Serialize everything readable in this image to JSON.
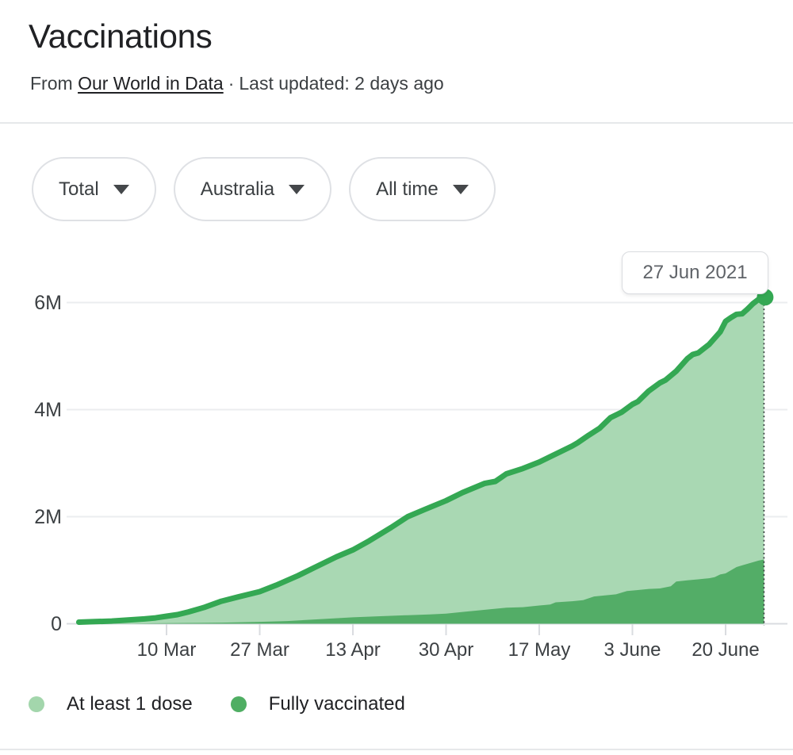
{
  "header": {
    "title": "Vaccinations",
    "source_prefix": "From",
    "source_link": "Our World in Data",
    "separator": "·",
    "updated": "Last updated: 2 days ago"
  },
  "filters": [
    {
      "label": "Total"
    },
    {
      "label": "Australia"
    },
    {
      "label": "All time"
    }
  ],
  "legend": {
    "items": [
      {
        "label": "At least 1 dose",
        "color": "#a3d6ac"
      },
      {
        "label": "Fully vaccinated",
        "color": "#4fae63"
      }
    ]
  },
  "chart_data": {
    "type": "area",
    "title": "Vaccinations",
    "xlabel": "",
    "ylabel": "",
    "ylim": [
      0,
      6.5
    ],
    "grid": "horizontal",
    "legend_position": "bottom",
    "y_ticks": [
      {
        "label": "0",
        "value": 0
      },
      {
        "label": "2M",
        "value": 2
      },
      {
        "label": "4M",
        "value": 4
      },
      {
        "label": "6M",
        "value": 6
      }
    ],
    "x_ticks": [
      {
        "label": "10 Mar",
        "day": 16
      },
      {
        "label": "27 Mar",
        "day": 33
      },
      {
        "label": "13 Apr",
        "day": 50
      },
      {
        "label": "30 Apr",
        "day": 67
      },
      {
        "label": "17 May",
        "day": 84
      },
      {
        "label": "3 June",
        "day": 101
      },
      {
        "label": "20 June",
        "day": 118
      }
    ],
    "end_marker": {
      "label": "27 Jun 2021",
      "day": 125,
      "value": 6.1
    },
    "value_unit": "millions of people",
    "series": [
      {
        "name": "At least 1 dose",
        "color_line": "#34a853",
        "color_fill": "#a9d8b3",
        "points": [
          [
            0,
            0.03
          ],
          [
            3,
            0.04
          ],
          [
            6,
            0.05
          ],
          [
            9,
            0.07
          ],
          [
            12,
            0.09
          ],
          [
            14,
            0.11
          ],
          [
            16,
            0.14
          ],
          [
            18,
            0.17
          ],
          [
            20,
            0.22
          ],
          [
            23,
            0.31
          ],
          [
            26,
            0.42
          ],
          [
            29,
            0.5
          ],
          [
            33,
            0.6
          ],
          [
            36,
            0.72
          ],
          [
            40,
            0.9
          ],
          [
            43,
            1.05
          ],
          [
            47,
            1.25
          ],
          [
            50,
            1.38
          ],
          [
            53,
            1.55
          ],
          [
            57,
            1.8
          ],
          [
            60,
            2.0
          ],
          [
            63,
            2.13
          ],
          [
            67,
            2.3
          ],
          [
            70,
            2.45
          ],
          [
            74,
            2.62
          ],
          [
            76,
            2.66
          ],
          [
            78,
            2.8
          ],
          [
            81,
            2.9
          ],
          [
            84,
            3.02
          ],
          [
            86,
            3.12
          ],
          [
            88,
            3.22
          ],
          [
            90,
            3.32
          ],
          [
            91,
            3.38
          ],
          [
            93,
            3.52
          ],
          [
            95,
            3.65
          ],
          [
            97,
            3.85
          ],
          [
            99,
            3.95
          ],
          [
            101,
            4.1
          ],
          [
            102,
            4.15
          ],
          [
            104,
            4.35
          ],
          [
            106,
            4.5
          ],
          [
            107,
            4.55
          ],
          [
            109,
            4.72
          ],
          [
            111,
            4.95
          ],
          [
            112,
            5.03
          ],
          [
            113,
            5.06
          ],
          [
            115,
            5.22
          ],
          [
            117,
            5.45
          ],
          [
            118,
            5.65
          ],
          [
            119,
            5.72
          ],
          [
            120,
            5.78
          ],
          [
            121,
            5.79
          ],
          [
            122,
            5.88
          ],
          [
            123,
            5.98
          ],
          [
            124,
            6.06
          ],
          [
            125,
            6.1
          ]
        ]
      },
      {
        "name": "Fully vaccinated",
        "color_fill": "#53ad67",
        "points": [
          [
            0,
            0
          ],
          [
            10,
            0.005
          ],
          [
            16,
            0.01
          ],
          [
            20,
            0.015
          ],
          [
            26,
            0.02
          ],
          [
            33,
            0.035
          ],
          [
            38,
            0.05
          ],
          [
            43,
            0.08
          ],
          [
            50,
            0.12
          ],
          [
            55,
            0.14
          ],
          [
            60,
            0.16
          ],
          [
            64,
            0.175
          ],
          [
            67,
            0.19
          ],
          [
            70,
            0.22
          ],
          [
            73,
            0.25
          ],
          [
            75,
            0.27
          ],
          [
            78,
            0.3
          ],
          [
            81,
            0.31
          ],
          [
            84,
            0.34
          ],
          [
            86,
            0.36
          ],
          [
            87,
            0.4
          ],
          [
            90,
            0.42
          ],
          [
            92,
            0.44
          ],
          [
            94,
            0.51
          ],
          [
            96,
            0.53
          ],
          [
            98,
            0.55
          ],
          [
            100,
            0.61
          ],
          [
            102,
            0.63
          ],
          [
            104,
            0.65
          ],
          [
            106,
            0.66
          ],
          [
            108,
            0.7
          ],
          [
            109,
            0.79
          ],
          [
            111,
            0.81
          ],
          [
            113,
            0.83
          ],
          [
            115,
            0.85
          ],
          [
            116,
            0.87
          ],
          [
            117,
            0.92
          ],
          [
            118,
            0.94
          ],
          [
            119,
            1.0
          ],
          [
            120,
            1.06
          ],
          [
            121,
            1.09
          ],
          [
            122,
            1.12
          ],
          [
            123,
            1.15
          ],
          [
            124,
            1.18
          ],
          [
            125,
            1.2
          ]
        ]
      }
    ]
  }
}
